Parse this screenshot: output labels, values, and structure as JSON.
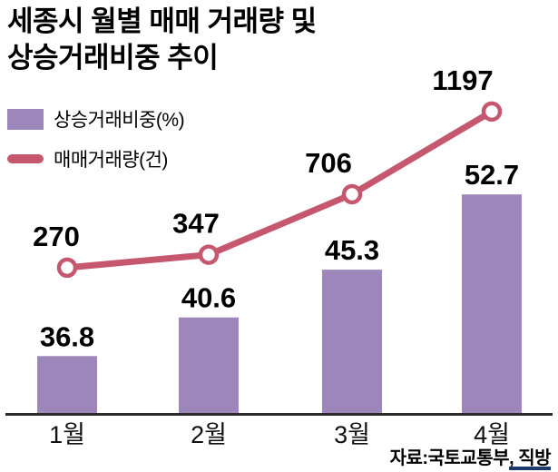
{
  "header": {
    "title": "세종시 월별 매매 거래량 및\n상승거래비중 추이"
  },
  "source": "자료:국토교통부, 직방",
  "chart_data": {
    "type": "combo",
    "title": "세종시 월별 매매 거래량 및 상승거래비중 추이",
    "categories": [
      "1월",
      "2월",
      "3월",
      "4월"
    ],
    "series": [
      {
        "name": "상승거래비중(%)",
        "type": "bar",
        "values": [
          36.8,
          40.6,
          45.3,
          52.7
        ],
        "color": "#9c86ba"
      },
      {
        "name": "매매거래량(건)",
        "type": "line",
        "values": [
          270,
          347,
          706,
          1197
        ],
        "color": "#c5586f",
        "marker": "open-circle"
      }
    ],
    "legend_position": "top-left",
    "grid": false,
    "source": "자료:국토교통부, 직방"
  }
}
